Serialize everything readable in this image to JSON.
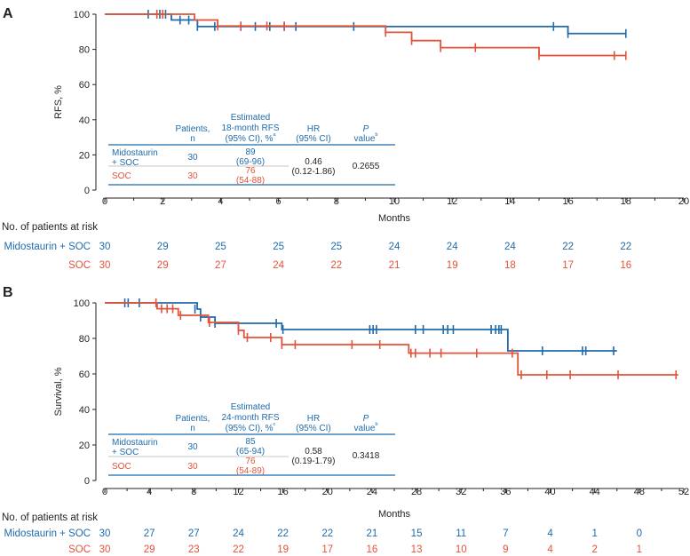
{
  "colors": {
    "blue": "#1f6bab",
    "orange": "#e2533a",
    "black": "#231f20",
    "rule": "#c7c7c7"
  },
  "arm_labels": {
    "mido": "Midostaurin + SOC",
    "soc": "SOC"
  },
  "chart_data": [
    {
      "type": "line",
      "panel_label": "A",
      "ylabel": "RFS, %",
      "xlabel": "Months",
      "xlim": [
        0,
        20
      ],
      "ylim": [
        0,
        100
      ],
      "x_ticks": [
        0,
        2,
        4,
        6,
        8,
        10,
        12,
        14,
        16,
        18,
        20
      ],
      "y_ticks": [
        0,
        20,
        40,
        60,
        80,
        100
      ],
      "series": [
        {
          "name": "Midostaurin + SOC",
          "color_key": "blue",
          "steps": [
            [
              0,
              100
            ],
            [
              2.3,
              96.7
            ],
            [
              3.2,
              93
            ],
            [
              16,
              89
            ],
            [
              18,
              89
            ]
          ],
          "censors": [
            [
              1.5,
              100
            ],
            [
              1.9,
              100
            ],
            [
              2.1,
              100
            ],
            [
              2.6,
              96.7
            ],
            [
              2.9,
              96.7
            ],
            [
              3.2,
              93
            ],
            [
              3.8,
              93
            ],
            [
              4.7,
              93
            ],
            [
              5.2,
              93
            ],
            [
              5.7,
              93
            ],
            [
              6.2,
              93
            ],
            [
              6.6,
              93
            ],
            [
              8.6,
              93
            ],
            [
              15.5,
              93
            ],
            [
              16.0,
              89
            ],
            [
              18.0,
              89
            ]
          ]
        },
        {
          "name": "SOC",
          "color_key": "orange",
          "steps": [
            [
              0,
              100
            ],
            [
              3.1,
              96.7
            ],
            [
              3.9,
              93.3
            ],
            [
              9.7,
              89.7
            ],
            [
              10.6,
              85
            ],
            [
              11.6,
              81
            ],
            [
              15.0,
              76.5
            ],
            [
              18,
              76.5
            ]
          ],
          "censors": [
            [
              1.8,
              100
            ],
            [
              2.0,
              100
            ],
            [
              3.9,
              93.3
            ],
            [
              4.7,
              93.3
            ],
            [
              5.6,
              93.3
            ],
            [
              6.2,
              93.3
            ],
            [
              9.7,
              89.7
            ],
            [
              10.6,
              85
            ],
            [
              11.6,
              81
            ],
            [
              12.8,
              81
            ],
            [
              15.0,
              76.5
            ],
            [
              17.6,
              76.5
            ],
            [
              18.0,
              76.5
            ]
          ]
        }
      ],
      "summary_table": {
        "headers": [
          "Patients, n",
          "Estimated 18-month RFS (95% CI), %ᵃ",
          "HR (95% CI)",
          "P valueᵇ"
        ],
        "rows": [
          {
            "arm": "Midostaurin + SOC",
            "n": "30",
            "estimate": "89",
            "ci": "(69-96)"
          },
          {
            "arm": "SOC",
            "n": "30",
            "estimate": "76",
            "ci": "(54-88)"
          }
        ],
        "hr": "0.46",
        "hr_ci": "(0.12-1.86)",
        "p": "0.2655"
      },
      "risk_table": {
        "title": "No. of patients at risk",
        "time_points": [
          0,
          2,
          4,
          6,
          8,
          10,
          12,
          14,
          16,
          18
        ],
        "rows": [
          {
            "arm": "Midostaurin + SOC",
            "color_key": "blue",
            "values": [
              "30",
              "29",
              "25",
              "25",
              "25",
              "24",
              "24",
              "24",
              "22",
              "22"
            ]
          },
          {
            "arm": "SOC",
            "color_key": "orange",
            "values": [
              "30",
              "29",
              "27",
              "24",
              "22",
              "21",
              "19",
              "18",
              "17",
              "16"
            ]
          }
        ]
      }
    },
    {
      "type": "line",
      "panel_label": "B",
      "ylabel": "Survival, %",
      "xlabel": "Months",
      "xlim": [
        0,
        52
      ],
      "ylim": [
        0,
        100
      ],
      "x_ticks": [
        0,
        4,
        8,
        12,
        16,
        20,
        24,
        28,
        32,
        36,
        40,
        44,
        48,
        52
      ],
      "y_ticks": [
        0,
        20,
        40,
        60,
        80,
        100
      ],
      "series": [
        {
          "name": "Midostaurin + SOC",
          "color_key": "blue",
          "steps": [
            [
              0,
              100
            ],
            [
              8.3,
              96.5
            ],
            [
              8.6,
              92
            ],
            [
              9.9,
              88.5
            ],
            [
              15.9,
              85
            ],
            [
              36.2,
              73
            ],
            [
              46,
              73
            ]
          ],
          "censors": [
            [
              1.8,
              100
            ],
            [
              2.1,
              100
            ],
            [
              3.1,
              100
            ],
            [
              8.1,
              96.5
            ],
            [
              8.6,
              92
            ],
            [
              9.9,
              88.5
            ],
            [
              15.4,
              88.5
            ],
            [
              16.0,
              85
            ],
            [
              23.8,
              85
            ],
            [
              24.1,
              85
            ],
            [
              24.4,
              85
            ],
            [
              27.9,
              85
            ],
            [
              28.6,
              85
            ],
            [
              30.4,
              85
            ],
            [
              30.8,
              85
            ],
            [
              31.3,
              85
            ],
            [
              34.7,
              85
            ],
            [
              35.1,
              85
            ],
            [
              35.4,
              85
            ],
            [
              35.6,
              85
            ],
            [
              39.3,
              73
            ],
            [
              42.9,
              73
            ],
            [
              43.2,
              73
            ],
            [
              45.7,
              73
            ]
          ]
        },
        {
          "name": "SOC",
          "color_key": "orange",
          "steps": [
            [
              0,
              100
            ],
            [
              4.7,
              96.7
            ],
            [
              6.6,
              93
            ],
            [
              9.3,
              89
            ],
            [
              12.0,
              84.5
            ],
            [
              12.5,
              80.5
            ],
            [
              15.9,
              76.5
            ],
            [
              27.3,
              71.7
            ],
            [
              37.1,
              59.5
            ],
            [
              51.5,
              59.5
            ]
          ],
          "censors": [
            [
              4.6,
              100
            ],
            [
              5.1,
              96.7
            ],
            [
              5.6,
              96.7
            ],
            [
              6.1,
              96.7
            ],
            [
              6.8,
              93
            ],
            [
              9.4,
              89
            ],
            [
              12.0,
              84.5
            ],
            [
              12.8,
              80.5
            ],
            [
              14.9,
              80.5
            ],
            [
              15.9,
              76.5
            ],
            [
              17.1,
              76.5
            ],
            [
              22.2,
              76.5
            ],
            [
              24.7,
              76.5
            ],
            [
              27.5,
              71.7
            ],
            [
              27.9,
              71.7
            ],
            [
              29.2,
              71.7
            ],
            [
              30.2,
              71.7
            ],
            [
              33.4,
              71.7
            ],
            [
              36.6,
              71.7
            ],
            [
              37.4,
              59.5
            ],
            [
              39.7,
              59.5
            ],
            [
              41.8,
              59.5
            ],
            [
              46.1,
              59.5
            ],
            [
              51.3,
              59.5
            ]
          ]
        }
      ],
      "summary_table": {
        "headers": [
          "Patients, n",
          "Estimated 24-month RFS (95% CI), %ᶜ",
          "HR (95% CI)",
          "P valueᵇ"
        ],
        "rows": [
          {
            "arm": "Midostaurin + SOC",
            "n": "30",
            "estimate": "85",
            "ci": "(65-94)"
          },
          {
            "arm": "SOC",
            "n": "30",
            "estimate": "76",
            "ci": "(54-89)"
          }
        ],
        "hr": "0.58",
        "hr_ci": "(0.19-1.79)",
        "p": "0.3418"
      },
      "risk_table": {
        "title": "No. of patients at risk",
        "time_points": [
          0,
          4,
          8,
          12,
          16,
          20,
          24,
          28,
          32,
          36,
          40,
          44,
          48
        ],
        "rows": [
          {
            "arm": "Midostaurin + SOC",
            "color_key": "blue",
            "values": [
              "30",
              "27",
              "27",
              "24",
              "22",
              "22",
              "21",
              "15",
              "11",
              "7",
              "4",
              "1",
              "0"
            ]
          },
          {
            "arm": "SOC",
            "color_key": "orange",
            "values": [
              "30",
              "29",
              "23",
              "22",
              "19",
              "17",
              "16",
              "13",
              "10",
              "9",
              "4",
              "2",
              "1"
            ]
          }
        ]
      }
    }
  ]
}
